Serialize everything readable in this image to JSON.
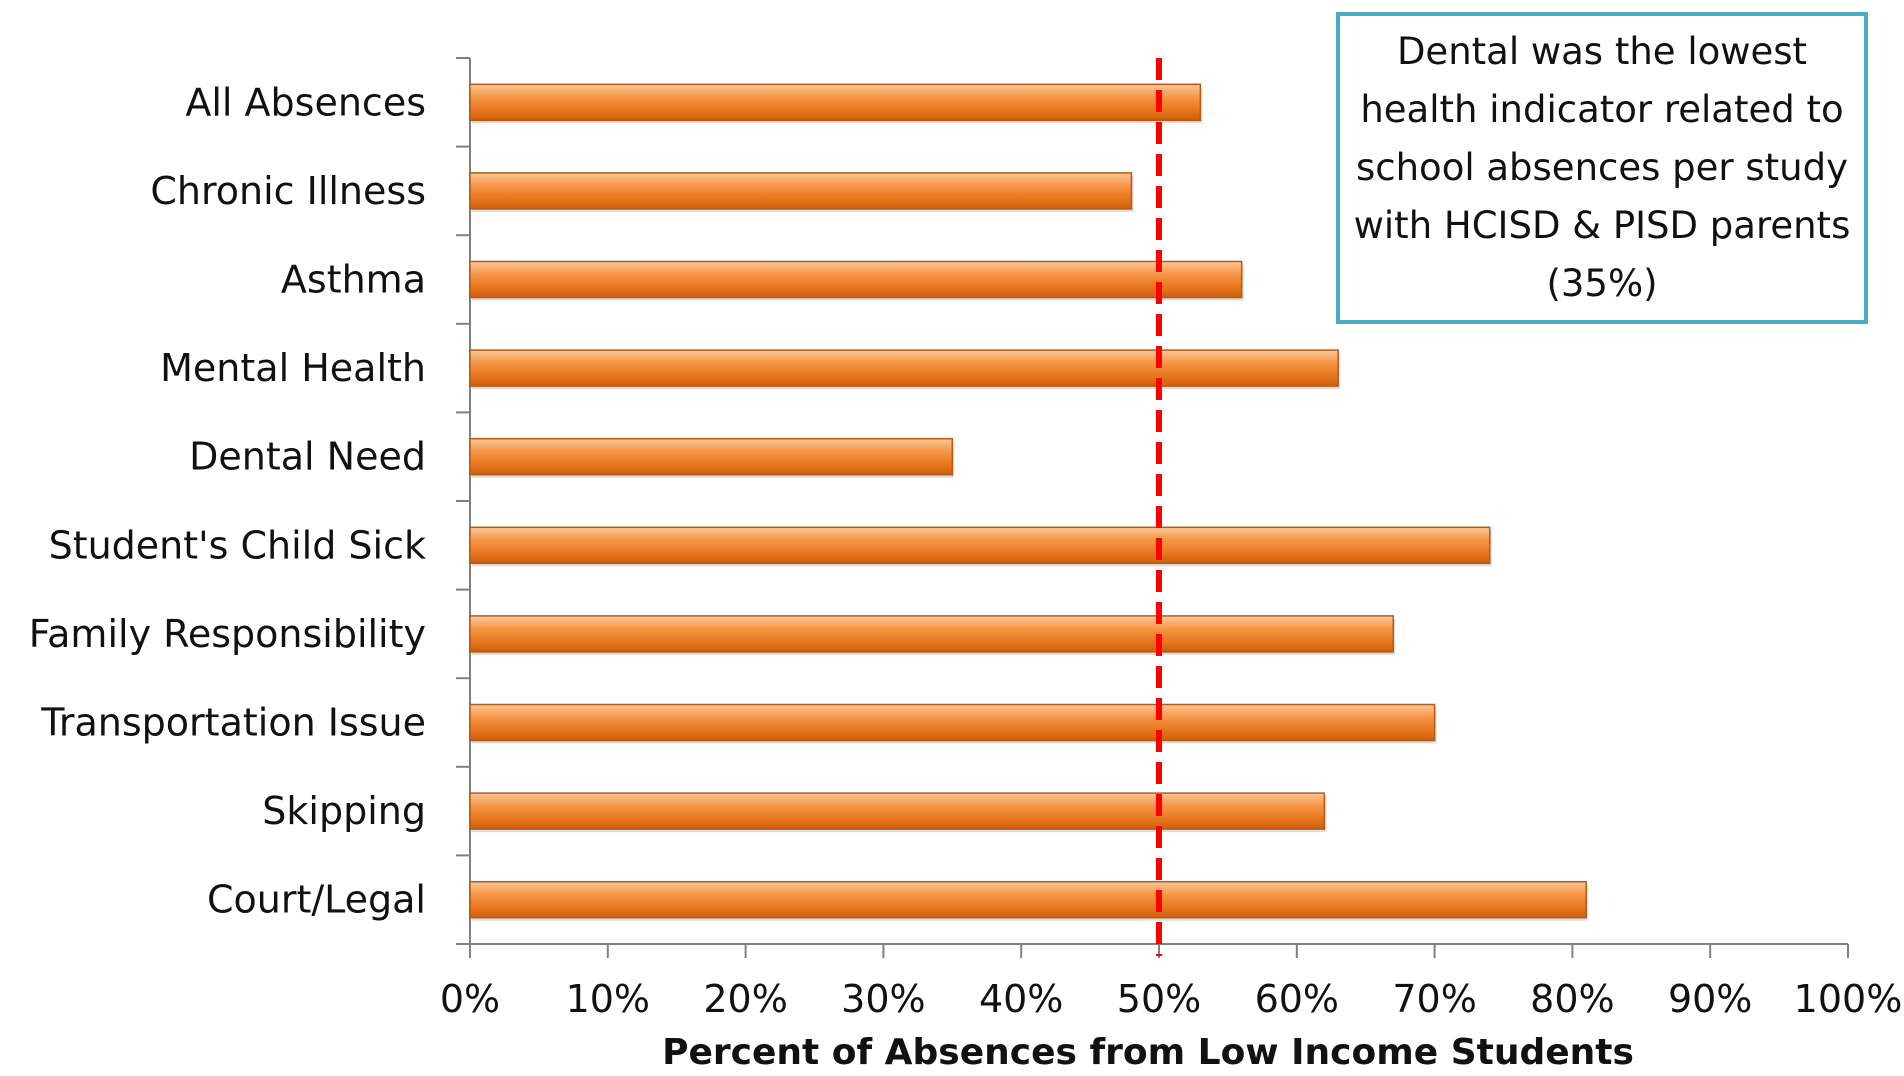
{
  "chart_data": {
    "type": "bar",
    "orientation": "horizontal",
    "categories": [
      "All Absences",
      "Chronic Illness",
      "Asthma",
      "Mental Health",
      "Dental Need",
      "Student's Child Sick",
      "Family Responsibility",
      "Transportation Issue",
      "Skipping",
      "Court/Legal"
    ],
    "values": [
      53,
      48,
      56,
      63,
      35,
      74,
      67,
      70,
      62,
      81
    ],
    "value_unit": "%",
    "xlabel": "Percent of Absences from Low Income Students",
    "ylabel": "",
    "xlim": [
      0,
      100
    ],
    "x_ticks": [
      0,
      10,
      20,
      30,
      40,
      50,
      60,
      70,
      80,
      90,
      100
    ],
    "x_tick_labels": [
      "0%",
      "10%",
      "20%",
      "30%",
      "40%",
      "50%",
      "60%",
      "70%",
      "80%",
      "90%",
      "100%"
    ],
    "reference_line": {
      "value": 50,
      "style": "dashed",
      "color": "#ff0000"
    },
    "bar_color": "#f79646",
    "grid": false,
    "legend": false
  },
  "annotation": {
    "text": "Dental was the lowest health indicator related to school absences per study with HCISD & PISD parents (35%)",
    "border_color": "#4bacc6"
  }
}
